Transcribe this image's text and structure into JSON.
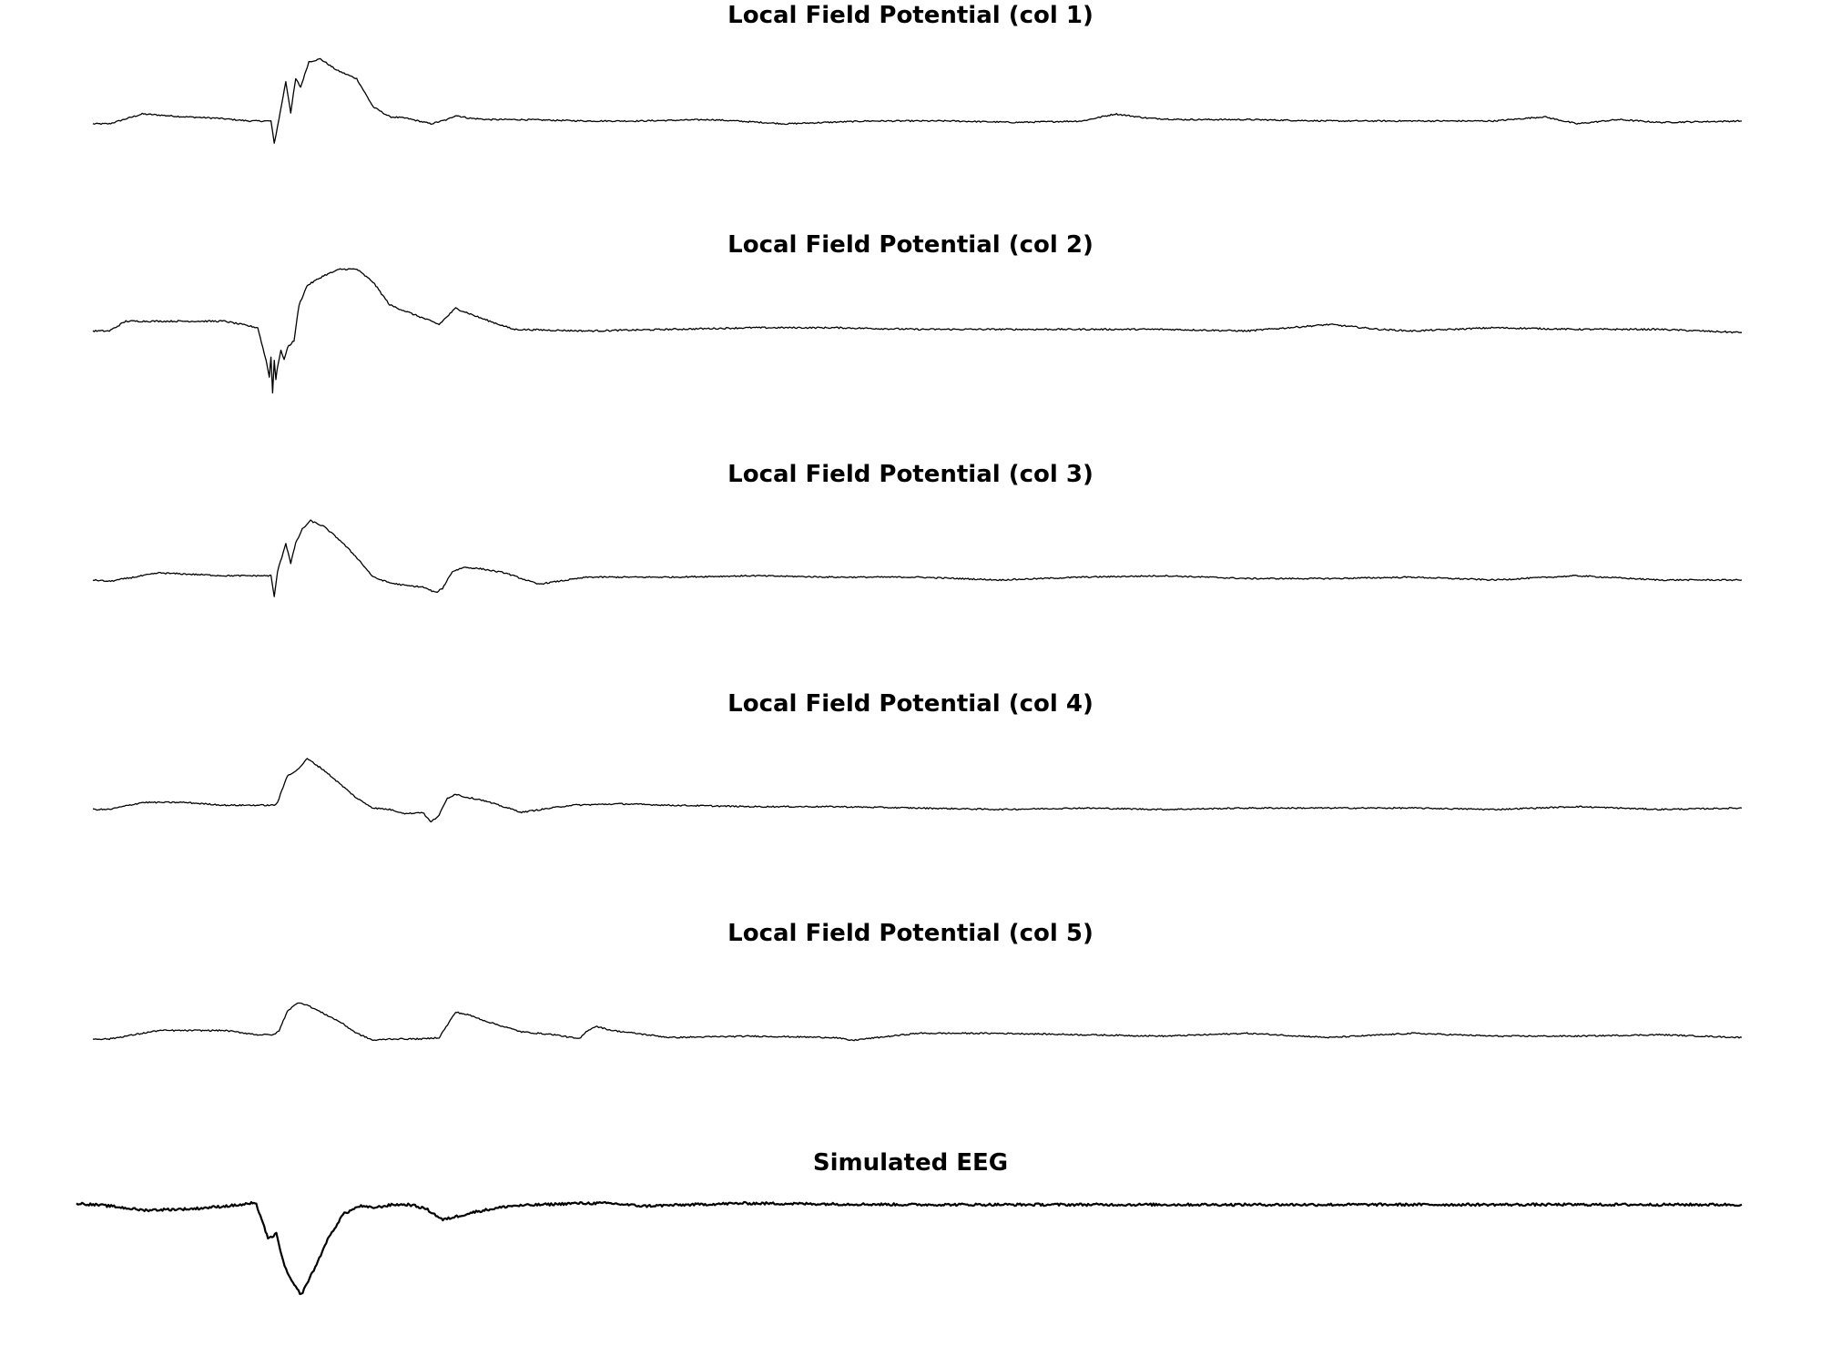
{
  "chart_data": [
    {
      "type": "line",
      "title": "Local Field Potential (col 1)",
      "xlabel": "",
      "ylabel": "",
      "axes": "off",
      "grid": false,
      "legend": "none",
      "xlim": [
        0,
        1000
      ],
      "ylim": [
        -1.2,
        3.0
      ],
      "color": "#000000",
      "series": [
        {
          "x": [
            0,
            10,
            30,
            55,
            75,
            95,
            108,
            110,
            112,
            117,
            120,
            123,
            126,
            131,
            138,
            148,
            160,
            170,
            180,
            190,
            205,
            215,
            220,
            228,
            240,
            260,
            300,
            330,
            375,
            420,
            470,
            520,
            560,
            600,
            620,
            640,
            660,
            700,
            750,
            800,
            850,
            880,
            900,
            925,
            950,
            1000
          ],
          "y": [
            -0.1,
            -0.1,
            0.25,
            0.15,
            0.1,
            0.0,
            0.0,
            -0.8,
            -0.2,
            1.4,
            0.3,
            1.5,
            1.2,
            2.1,
            2.2,
            1.8,
            1.5,
            0.5,
            0.15,
            0.1,
            -0.1,
            0.05,
            0.2,
            0.1,
            0.05,
            0.05,
            0.0,
            0.0,
            0.05,
            -0.1,
            0.0,
            0.0,
            -0.05,
            0.0,
            0.25,
            0.1,
            0.05,
            0.05,
            0.0,
            0.0,
            0.0,
            0.15,
            -0.1,
            0.05,
            -0.05,
            0.0
          ]
        }
      ]
    },
    {
      "type": "line",
      "title": "Local Field Potential (col 2)",
      "xlabel": "",
      "ylabel": "",
      "axes": "off",
      "grid": false,
      "legend": "none",
      "xlim": [
        0,
        1000
      ],
      "ylim": [
        -2.2,
        2.0
      ],
      "color": "#000000",
      "series": [
        {
          "x": [
            0,
            10,
            20,
            40,
            80,
            100,
            103,
            105,
            107,
            108,
            109,
            110,
            111,
            112,
            114,
            116,
            118,
            122,
            125,
            130,
            140,
            150,
            160,
            170,
            180,
            190,
            200,
            210,
            220,
            235,
            255,
            300,
            350,
            400,
            450,
            500,
            550,
            600,
            650,
            700,
            750,
            780,
            800,
            850,
            900,
            950,
            1000
          ],
          "y": [
            0.0,
            0.0,
            0.3,
            0.3,
            0.3,
            0.1,
            -0.5,
            -0.9,
            -1.4,
            -0.8,
            -1.9,
            -0.9,
            -1.5,
            -1.1,
            -0.6,
            -0.9,
            -0.5,
            -0.3,
            0.8,
            1.4,
            1.7,
            1.9,
            1.9,
            1.5,
            0.8,
            0.6,
            0.4,
            0.2,
            0.7,
            0.4,
            0.05,
            0.0,
            0.05,
            0.1,
            0.1,
            0.05,
            0.05,
            0.05,
            0.05,
            0.0,
            0.2,
            0.05,
            0.0,
            0.1,
            0.05,
            0.05,
            -0.05
          ]
        }
      ]
    },
    {
      "type": "line",
      "title": "Local Field Potential (col 3)",
      "xlabel": "",
      "ylabel": "",
      "axes": "off",
      "grid": false,
      "legend": "none",
      "xlim": [
        0,
        1000
      ],
      "ylim": [
        -1.2,
        3.0
      ],
      "color": "#000000",
      "series": [
        {
          "x": [
            0,
            10,
            40,
            80,
            100,
            108,
            110,
            112,
            117,
            120,
            123,
            127,
            132,
            140,
            150,
            160,
            170,
            180,
            190,
            200,
            208,
            212,
            218,
            225,
            235,
            250,
            270,
            300,
            350,
            400,
            450,
            500,
            550,
            600,
            650,
            700,
            750,
            800,
            850,
            900,
            950,
            1000
          ],
          "y": [
            0.0,
            -0.05,
            0.25,
            0.15,
            0.15,
            0.15,
            -0.6,
            0.3,
            1.3,
            0.6,
            1.3,
            1.8,
            2.1,
            1.9,
            1.4,
            0.8,
            0.1,
            -0.1,
            -0.2,
            -0.25,
            -0.45,
            -0.3,
            0.3,
            0.45,
            0.4,
            0.25,
            -0.15,
            0.1,
            0.1,
            0.15,
            0.1,
            0.1,
            0.0,
            0.1,
            0.15,
            0.05,
            0.05,
            0.1,
            0.0,
            0.15,
            0.0,
            0.0
          ]
        }
      ]
    },
    {
      "type": "line",
      "title": "Local Field Potential (col 4)",
      "xlabel": "",
      "ylabel": "",
      "axes": "off",
      "grid": false,
      "legend": "none",
      "xlim": [
        0,
        1000
      ],
      "ylim": [
        -1.2,
        3.0
      ],
      "color": "#000000",
      "series": [
        {
          "x": [
            0,
            10,
            30,
            55,
            80,
            100,
            110,
            112,
            118,
            124,
            130,
            140,
            150,
            160,
            170,
            180,
            190,
            200,
            205,
            210,
            215,
            220,
            225,
            235,
            260,
            290,
            320,
            350,
            400,
            450,
            500,
            550,
            600,
            650,
            700,
            750,
            800,
            850,
            900,
            950,
            1000
          ],
          "y": [
            0.0,
            0.0,
            0.25,
            0.25,
            0.15,
            0.15,
            0.15,
            0.25,
            1.2,
            1.4,
            1.8,
            1.4,
            0.9,
            0.4,
            0.05,
            0.0,
            -0.15,
            -0.1,
            -0.45,
            -0.2,
            0.4,
            0.55,
            0.45,
            0.35,
            -0.1,
            0.15,
            0.2,
            0.15,
            0.1,
            0.1,
            0.05,
            0.0,
            0.05,
            0.0,
            0.05,
            0.05,
            0.05,
            0.0,
            0.1,
            0.0,
            0.05
          ]
        }
      ]
    },
    {
      "type": "line",
      "title": "Local Field Potential (col 5)",
      "xlabel": "",
      "ylabel": "",
      "axes": "off",
      "grid": false,
      "legend": "none",
      "xlim": [
        0,
        1000
      ],
      "ylim": [
        -1.2,
        3.0
      ],
      "color": "#000000",
      "series": [
        {
          "x": [
            0,
            10,
            40,
            80,
            100,
            110,
            113,
            118,
            125,
            130,
            140,
            150,
            160,
            170,
            180,
            190,
            200,
            210,
            215,
            220,
            228,
            240,
            260,
            280,
            295,
            300,
            305,
            315,
            350,
            400,
            450,
            460,
            500,
            550,
            600,
            650,
            700,
            750,
            800,
            850,
            900,
            950,
            1000
          ],
          "y": [
            0.0,
            0.0,
            0.3,
            0.3,
            0.15,
            0.15,
            0.3,
            1.0,
            1.3,
            1.2,
            0.9,
            0.6,
            0.2,
            -0.05,
            0.0,
            0.0,
            0.0,
            0.05,
            0.5,
            0.95,
            0.85,
            0.6,
            0.25,
            0.15,
            0.0,
            0.3,
            0.45,
            0.3,
            0.05,
            0.1,
            0.05,
            -0.05,
            0.2,
            0.2,
            0.15,
            0.1,
            0.2,
            0.05,
            0.2,
            0.1,
            0.1,
            0.15,
            0.05
          ]
        }
      ]
    },
    {
      "type": "line",
      "title": "Simulated EEG",
      "xlabel": "",
      "ylabel": "",
      "axes": "off",
      "grid": false,
      "legend": "none",
      "xlim": [
        0,
        1000
      ],
      "ylim": [
        -3.8,
        0.8
      ],
      "color": "#000000",
      "series": [
        {
          "x": [
            0,
            20,
            40,
            70,
            90,
            100,
            105,
            108,
            112,
            115,
            120,
            125,
            130,
            135,
            140,
            145,
            150,
            160,
            170,
            175,
            180,
            190,
            200,
            210,
            220,
            230,
            240,
            260,
            280,
            300,
            320,
            340,
            400,
            500,
            600,
            700,
            800,
            900,
            1000
          ],
          "y": [
            0.1,
            0.0,
            -0.15,
            -0.1,
            0.0,
            0.05,
            0.1,
            0.05,
            -0.6,
            -1.2,
            -1.0,
            -2.2,
            -2.8,
            -3.2,
            -2.6,
            -2.0,
            -1.3,
            -0.3,
            0.0,
            -0.05,
            -0.05,
            0.05,
            0.05,
            -0.1,
            -0.5,
            -0.35,
            -0.2,
            0.0,
            0.05,
            0.1,
            0.1,
            0.0,
            0.1,
            0.05,
            0.05,
            0.05,
            0.05,
            0.05,
            0.05
          ]
        }
      ]
    }
  ]
}
